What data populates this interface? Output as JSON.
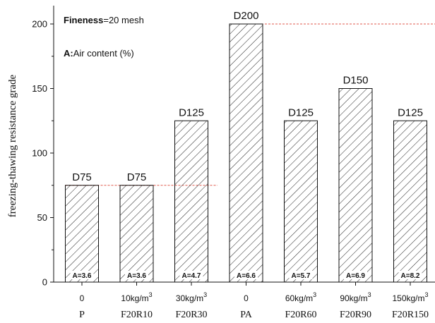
{
  "chart_data": {
    "type": "bar",
    "ylabel": "freezing-thawing resistance grade",
    "ylim": [
      0,
      210
    ],
    "yticks": [
      0,
      50,
      100,
      150,
      200
    ],
    "grid": false,
    "categories": [
      {
        "top": "0",
        "bottom": "P"
      },
      {
        "top": "10kg/m",
        "sup": "3",
        "bottom": "F20R10"
      },
      {
        "top": "30kg/m",
        "sup": "3",
        "bottom": "F20R30"
      },
      {
        "top": "0",
        "bottom": "PA"
      },
      {
        "top": "60kg/m",
        "sup": "3",
        "bottom": "F20R60"
      },
      {
        "top": "90kg/m",
        "sup": "3",
        "bottom": "F20R90"
      },
      {
        "top": "150kg/m",
        "sup": "3",
        "bottom": "F20R150"
      }
    ],
    "values": [
      75,
      75,
      125,
      200,
      125,
      150,
      125
    ],
    "bar_labels": [
      "D75",
      "D75",
      "D125",
      "D200",
      "D125",
      "D150",
      "D125"
    ],
    "air_content_labels": [
      "A=3.6",
      "A=3.6",
      "A=4.7",
      "A=6.6",
      "A=5.7",
      "A=6.9",
      "A=8.2"
    ],
    "reference_lines": [
      75,
      200
    ],
    "reference_line_color": "#e05a4e",
    "bar_fill": "hatched",
    "annotations": {
      "fineness_bold": "Fineness",
      "fineness_rest": "=20 mesh",
      "air_bold": "A:",
      "air_rest": "Air content (%)"
    }
  }
}
